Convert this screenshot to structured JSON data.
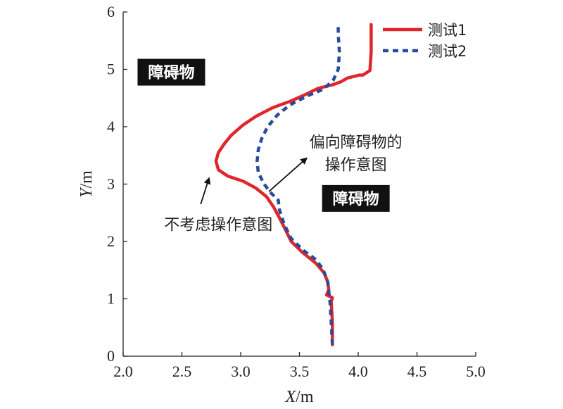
{
  "chart_data": {
    "type": "line",
    "xlabel_italic": "X",
    "xlabel_unit": "/m",
    "ylabel_italic": "Y",
    "ylabel_unit": "/m",
    "xlim": [
      2.0,
      5.0
    ],
    "ylim": [
      0,
      6
    ],
    "xticks": [
      "2.0",
      "2.5",
      "3.0",
      "3.5",
      "4.0",
      "4.5",
      "5.0"
    ],
    "yticks": [
      "0",
      "1",
      "2",
      "3",
      "4",
      "5",
      "6"
    ],
    "grid": false,
    "legend_position": "top-right",
    "series": [
      {
        "name": "测试1",
        "color": "#e0262b",
        "style": "solid",
        "x": [
          3.78,
          3.78,
          3.77,
          3.78,
          3.73,
          3.75,
          3.74,
          3.71,
          3.64,
          3.52,
          3.43,
          3.37,
          3.32,
          3.28,
          3.22,
          3.13,
          3.02,
          2.89,
          2.81,
          2.79,
          2.81,
          2.86,
          2.92,
          3.02,
          3.13,
          3.27,
          3.43,
          3.55,
          3.66,
          3.78,
          3.85,
          3.91,
          3.97,
          4.01,
          4.04,
          4.1,
          4.11,
          4.11
        ],
        "y": [
          0.2,
          0.6,
          0.95,
          1.02,
          1.07,
          1.15,
          1.3,
          1.45,
          1.62,
          1.82,
          2.0,
          2.25,
          2.45,
          2.6,
          2.78,
          2.93,
          3.05,
          3.14,
          3.25,
          3.4,
          3.55,
          3.7,
          3.85,
          4.03,
          4.18,
          4.33,
          4.45,
          4.56,
          4.67,
          4.73,
          4.78,
          4.85,
          4.88,
          4.9,
          4.9,
          4.98,
          5.3,
          5.78
        ]
      },
      {
        "name": "测试2",
        "color": "#2b4a9c",
        "style": "dashed",
        "x": [
          3.78,
          3.77,
          3.76,
          3.74,
          3.7,
          3.63,
          3.53,
          3.43,
          3.37,
          3.33,
          3.32,
          3.28,
          3.25,
          3.2,
          3.15,
          3.14,
          3.15,
          3.18,
          3.23,
          3.31,
          3.42,
          3.56,
          3.71,
          3.79,
          3.83,
          3.84,
          3.83,
          3.83
        ],
        "y": [
          0.2,
          0.6,
          0.95,
          1.3,
          1.52,
          1.7,
          1.85,
          2.05,
          2.3,
          2.55,
          2.72,
          2.8,
          2.86,
          3.0,
          3.2,
          3.4,
          3.6,
          3.8,
          4.0,
          4.2,
          4.38,
          4.53,
          4.66,
          4.82,
          5.0,
          5.3,
          5.6,
          5.78
        ]
      }
    ],
    "obstacles": [
      {
        "label": "障碍物",
        "x": 2.41,
        "y": 4.95
      },
      {
        "label": "障碍物",
        "x": 3.98,
        "y": 2.75
      }
    ],
    "annotations": [
      {
        "text": "不考虑操作意图",
        "arrow_from": [
          2.66,
          2.65
        ],
        "arrow_to": [
          2.73,
          3.1
        ],
        "text_x": 2.81,
        "text_y": 2.2
      },
      {
        "lines": [
          "偏向障碍物的",
          "操作意图"
        ],
        "arrow_from": [
          3.24,
          2.87
        ],
        "arrow_to": [
          3.56,
          3.45
        ],
        "text_x": 3.98,
        "text_y": 3.6
      }
    ]
  }
}
